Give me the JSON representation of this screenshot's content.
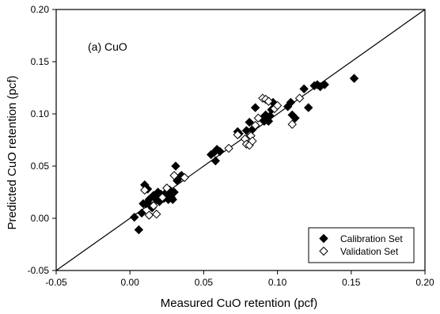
{
  "chart_data": {
    "type": "scatter",
    "annotation": "(a) CuO",
    "xlabel": "Measured CuO retention (pcf)",
    "ylabel": "Predicted CuO retention (pcf)",
    "xlim": [
      -0.05,
      0.2
    ],
    "ylim": [
      -0.05,
      0.2
    ],
    "xticks": [
      "-0.05",
      "0.00",
      "0.05",
      "0.10",
      "0.15",
      "0.20"
    ],
    "yticks": [
      "-0.05",
      "0.00",
      "0.05",
      "0.10",
      "0.15",
      "0.20"
    ],
    "grid": false,
    "legend_position": "bottom-right",
    "reference_line": [
      [
        -0.05,
        -0.05
      ],
      [
        0.2,
        0.2
      ]
    ],
    "series": [
      {
        "name": "Calibration Set",
        "marker": "filled-diamond",
        "color": "#000000",
        "points": [
          [
            0.003,
            0.001
          ],
          [
            0.006,
            -0.011
          ],
          [
            0.008,
            0.005
          ],
          [
            0.009,
            0.014
          ],
          [
            0.01,
            0.032
          ],
          [
            0.011,
            0.014
          ],
          [
            0.012,
            0.028
          ],
          [
            0.013,
            0.018
          ],
          [
            0.014,
            0.012
          ],
          [
            0.015,
            0.01
          ],
          [
            0.016,
            0.022
          ],
          [
            0.017,
            0.02
          ],
          [
            0.018,
            0.018
          ],
          [
            0.019,
            0.025
          ],
          [
            0.02,
            0.016
          ],
          [
            0.021,
            0.023
          ],
          [
            0.022,
            0.021
          ],
          [
            0.023,
            0.019
          ],
          [
            0.024,
            0.024
          ],
          [
            0.025,
            0.022
          ],
          [
            0.026,
            0.018
          ],
          [
            0.027,
            0.027
          ],
          [
            0.028,
            0.02
          ],
          [
            0.029,
            0.018
          ],
          [
            0.03,
            0.025
          ],
          [
            0.031,
            0.05
          ],
          [
            0.032,
            0.036
          ],
          [
            0.034,
            0.04
          ],
          [
            0.035,
            0.041
          ],
          [
            0.055,
            0.061
          ],
          [
            0.057,
            0.063
          ],
          [
            0.058,
            0.055
          ],
          [
            0.059,
            0.066
          ],
          [
            0.061,
            0.064
          ],
          [
            0.073,
            0.083
          ],
          [
            0.074,
            0.081
          ],
          [
            0.079,
            0.084
          ],
          [
            0.081,
            0.092
          ],
          [
            0.083,
            0.085
          ],
          [
            0.085,
            0.106
          ],
          [
            0.09,
            0.096
          ],
          [
            0.091,
            0.093
          ],
          [
            0.092,
            0.099
          ],
          [
            0.093,
            0.094
          ],
          [
            0.094,
            0.093
          ],
          [
            0.095,
            0.098
          ],
          [
            0.096,
            0.104
          ],
          [
            0.097,
            0.111
          ],
          [
            0.098,
            0.106
          ],
          [
            0.107,
            0.107
          ],
          [
            0.109,
            0.111
          ],
          [
            0.11,
            0.099
          ],
          [
            0.112,
            0.096
          ],
          [
            0.118,
            0.124
          ],
          [
            0.121,
            0.106
          ],
          [
            0.125,
            0.127
          ],
          [
            0.127,
            0.128
          ],
          [
            0.129,
            0.126
          ],
          [
            0.132,
            0.128
          ],
          [
            0.152,
            0.134
          ]
        ]
      },
      {
        "name": "Validation Set",
        "marker": "open-diamond",
        "color": "#000000",
        "points": [
          [
            0.01,
            0.027
          ],
          [
            0.013,
            0.003
          ],
          [
            0.016,
            0.012
          ],
          [
            0.018,
            0.004
          ],
          [
            0.022,
            0.02
          ],
          [
            0.025,
            0.029
          ],
          [
            0.03,
            0.041
          ],
          [
            0.037,
            0.039
          ],
          [
            0.067,
            0.067
          ],
          [
            0.073,
            0.08
          ],
          [
            0.078,
            0.076
          ],
          [
            0.079,
            0.071
          ],
          [
            0.081,
            0.07
          ],
          [
            0.082,
            0.079
          ],
          [
            0.083,
            0.074
          ],
          [
            0.085,
            0.089
          ],
          [
            0.087,
            0.096
          ],
          [
            0.09,
            0.115
          ],
          [
            0.092,
            0.114
          ],
          [
            0.094,
            0.112
          ],
          [
            0.098,
            0.105
          ],
          [
            0.1,
            0.108
          ],
          [
            0.11,
            0.09
          ],
          [
            0.115,
            0.115
          ]
        ]
      }
    ]
  }
}
